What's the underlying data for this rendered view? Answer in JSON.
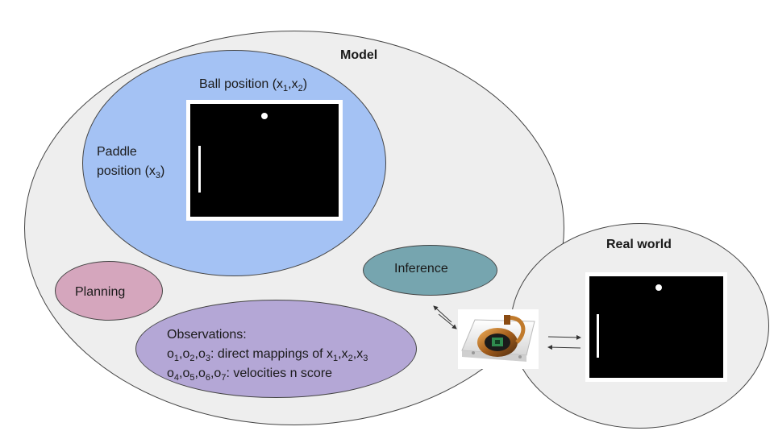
{
  "model": {
    "title": "Model"
  },
  "real_world": {
    "title": "Real world"
  },
  "state": {
    "ball_label": {
      "base": "Ball position (x",
      "s1": "1",
      "mid": ",x",
      "s2": "2",
      "end": ")"
    },
    "paddle_label": {
      "line1": "Paddle",
      "line2_base": "position (x",
      "line2_sub": "3",
      "line2_end": ")"
    }
  },
  "inference": {
    "label": "Inference"
  },
  "planning": {
    "label": "Planning"
  },
  "observations": {
    "title": "Observations:",
    "line1": {
      "o": "o",
      "s1": "1",
      "c1": ",o",
      "s2": "2",
      "c2": ",o",
      "s3": "3",
      "text": ": direct mappings of x",
      "x1": "1",
      "c3": ",x",
      "x2": "2",
      "c4": ",x",
      "x3": "3"
    },
    "line2": {
      "o": "o",
      "s4": "4",
      "c1": ",o",
      "s5": "5",
      "c2": ",o",
      "s6": "6",
      "c3": ",o",
      "s7": "7",
      "text": ": velocities n score"
    }
  },
  "icons": {
    "device": "sensor-chip-icon",
    "arrows": "bidirectional-arrows-icon"
  }
}
